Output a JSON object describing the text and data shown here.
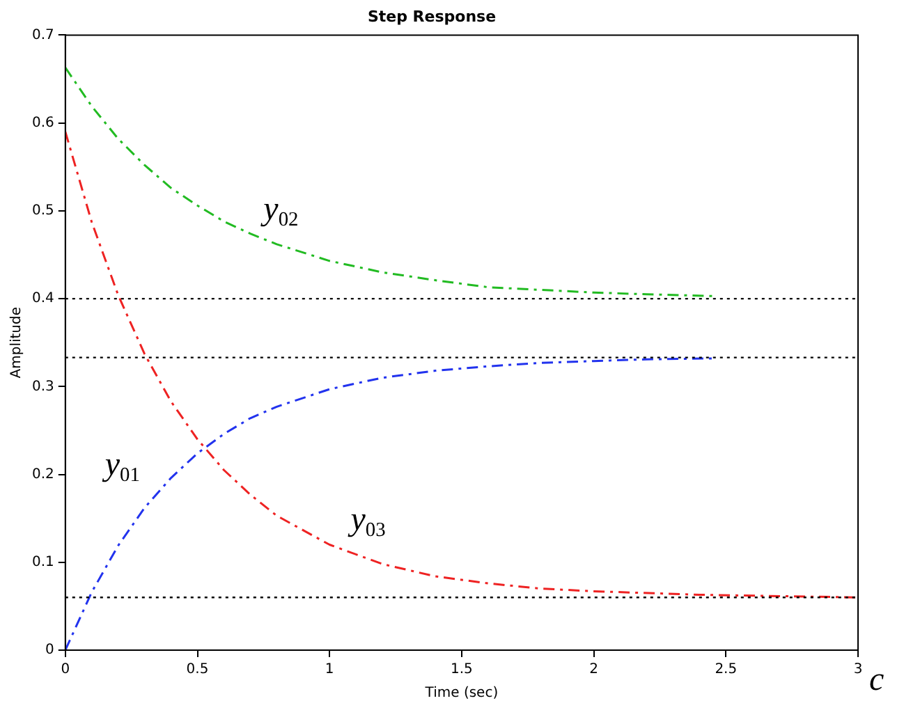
{
  "chart_data": {
    "type": "line",
    "title": "Step Response",
    "xlabel": "Time (sec)",
    "ylabel": "Amplitude",
    "xlim": [
      0,
      3
    ],
    "xticks": [
      0,
      0.5,
      1,
      1.5,
      2,
      2.5,
      3
    ],
    "ylim": [
      0,
      0.7
    ],
    "yticks": [
      0,
      0.1,
      0.2,
      0.3,
      0.4,
      0.5,
      0.6,
      0.7
    ],
    "grid": false,
    "legend": false,
    "line_style": "dashed",
    "marker": "none",
    "series": [
      {
        "color": "#22bb22",
        "x": [
          0,
          0.1,
          0.2,
          0.3,
          0.4,
          0.5,
          0.6,
          0.7,
          0.8,
          1.0,
          1.2,
          1.4,
          1.6,
          1.8,
          2.0,
          2.2,
          2.45
        ],
        "values": [
          0.663,
          0.619,
          0.582,
          0.552,
          0.526,
          0.506,
          0.488,
          0.474,
          0.462,
          0.443,
          0.43,
          0.421,
          0.413,
          0.41,
          0.407,
          0.405,
          0.403
        ]
      },
      {
        "color": "#2233ee",
        "x": [
          0,
          0.1,
          0.2,
          0.3,
          0.4,
          0.5,
          0.6,
          0.7,
          0.8,
          1.0,
          1.2,
          1.4,
          1.6,
          1.8,
          2.0,
          2.2,
          2.45
        ],
        "values": [
          0,
          0.066,
          0.119,
          0.162,
          0.196,
          0.224,
          0.246,
          0.264,
          0.277,
          0.297,
          0.31,
          0.318,
          0.323,
          0.327,
          0.329,
          0.331,
          0.332
        ]
      },
      {
        "color": "#ee2222",
        "x": [
          0,
          0.1,
          0.2,
          0.3,
          0.4,
          0.5,
          0.6,
          0.7,
          0.8,
          1.0,
          1.2,
          1.4,
          1.6,
          1.8,
          2.0,
          2.4,
          2.8,
          3.0
        ],
        "values": [
          0.59,
          0.487,
          0.404,
          0.337,
          0.283,
          0.24,
          0.205,
          0.177,
          0.153,
          0.12,
          0.098,
          0.084,
          0.076,
          0.07,
          0.067,
          0.063,
          0.061,
          0.06
        ]
      }
    ],
    "ref_lines": [
      {
        "axis": "y",
        "value": 0.4,
        "color": "#000000",
        "line_style": "dotted"
      },
      {
        "axis": "y",
        "value": 0.333,
        "color": "#000000",
        "line_style": "dotted"
      },
      {
        "axis": "y",
        "value": 0.06,
        "color": "#000000",
        "line_style": "dotted"
      }
    ],
    "annotations": [
      "y$_{02}$",
      "y$_{01}$",
      "y$_{03}$",
      "c"
    ]
  }
}
